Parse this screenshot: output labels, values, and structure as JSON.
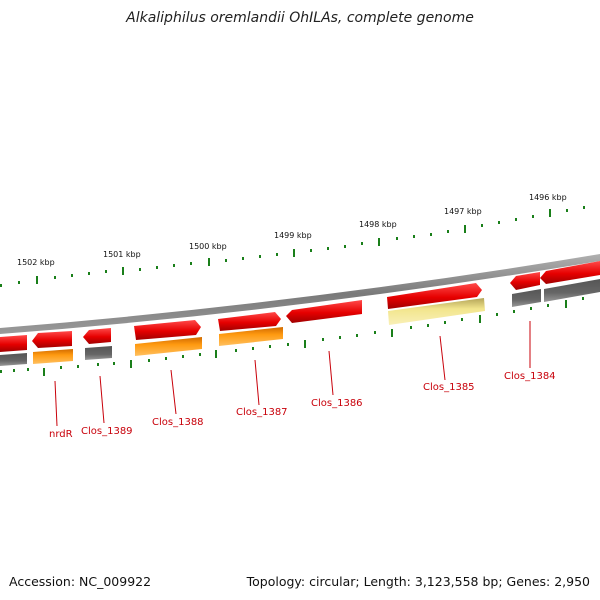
{
  "title": "Alkaliphilus oremlandii OhILAs, complete genome",
  "footer": {
    "accession": "Accession: NC_009922",
    "summary": "Topology: circular; Length: 3,123,558 bp; Genes: 2,950"
  },
  "scale_labels": [
    "1502 kbp",
    "1501 kbp",
    "1500 kbp",
    "1499 kbp",
    "1498 kbp",
    "1497 kbp",
    "1496 kbp"
  ],
  "gene_labels": [
    "nrdR",
    "Clos_1389",
    "Clos_1388",
    "Clos_1387",
    "Clos_1386",
    "Clos_1385",
    "Clos_1384"
  ],
  "colors": {
    "gene_red": "#e60000",
    "orange": "#ff9900",
    "gray": "#666666",
    "pale_yellow": "#f2e58c",
    "tick_green": "#1a7f1a",
    "backbone": "#8a8a8a"
  }
}
